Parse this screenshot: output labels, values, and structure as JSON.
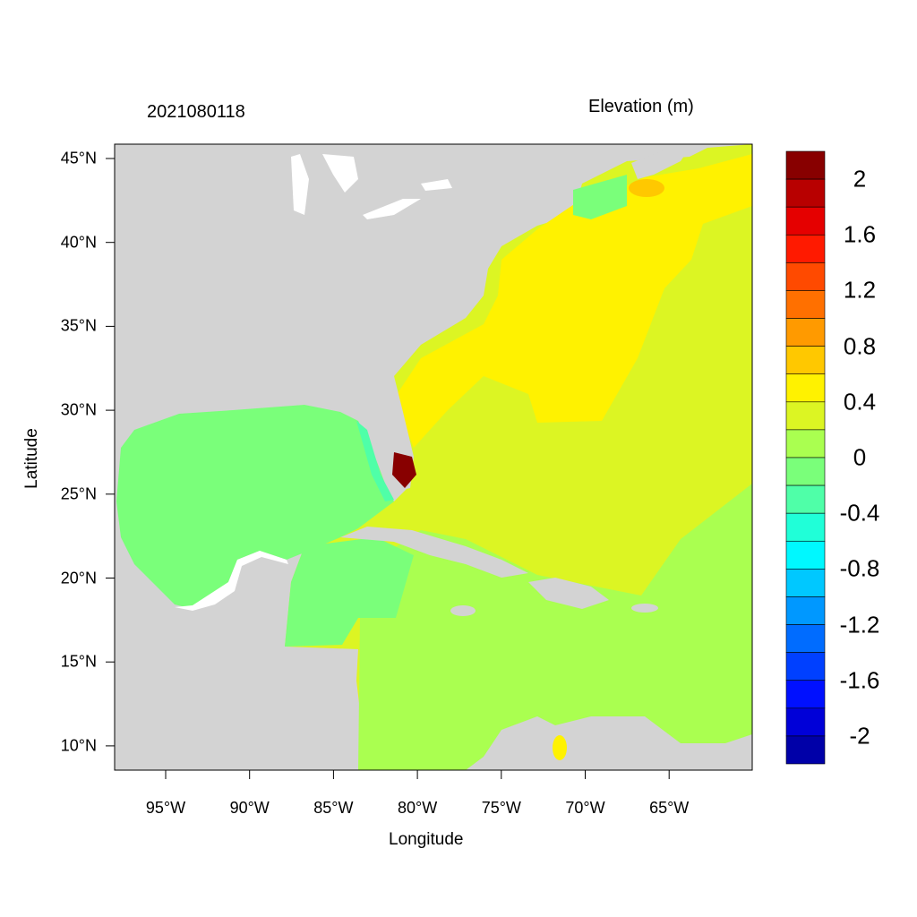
{
  "title_left": "2021080118",
  "title_right": "Elevation (m)",
  "x_axis_label": "Longitude",
  "y_axis_label": "Latitude",
  "lat_ticks": [
    "45°N",
    "40°N",
    "35°N",
    "30°N",
    "25°N",
    "20°N",
    "15°N",
    "10°N"
  ],
  "lon_ticks": [
    "95°W",
    "90°W",
    "85°W",
    "80°W",
    "75°W",
    "70°W",
    "65°W"
  ],
  "colorbar": {
    "labels": [
      "2",
      "1.6",
      "1.2",
      "0.8",
      "0.4",
      "0",
      "-0.4",
      "-0.8",
      "-1.2",
      "-1.6",
      "-2"
    ],
    "colors": [
      "#880000",
      "#B80000",
      "#E50000",
      "#FF1A00",
      "#FF4A00",
      "#FF7000",
      "#FF9A00",
      "#FFC800",
      "#FFF200",
      "#DCF523",
      "#AAFF50",
      "#7AFF7A",
      "#4FFFA8",
      "#20FFD8",
      "#00F8FF",
      "#00C8FF",
      "#0098FF",
      "#006CFF",
      "#0040FF",
      "#0010FF",
      "#0000D8",
      "#0000A8"
    ]
  },
  "land_color": "#D3D3D3"
}
